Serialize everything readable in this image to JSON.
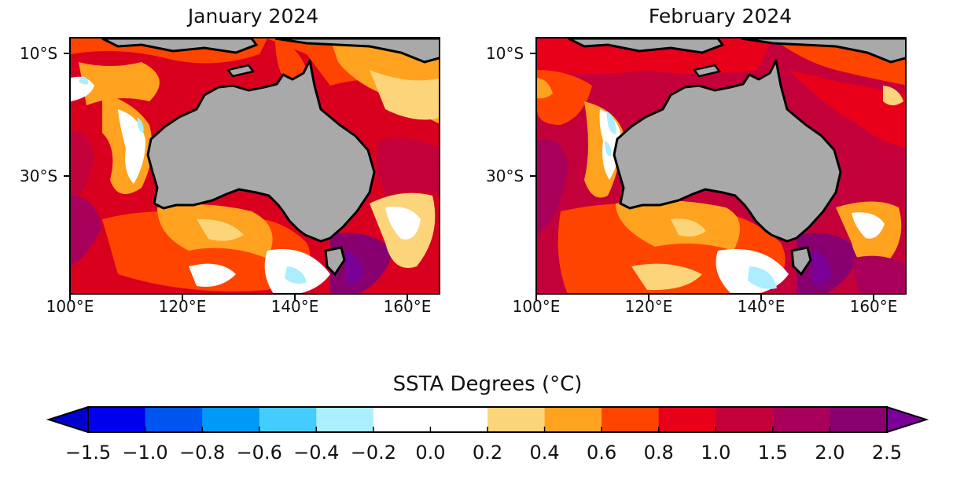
{
  "maps": [
    {
      "title": "January 2024"
    },
    {
      "title": "February 2024"
    }
  ],
  "axes": {
    "lat_labels": [
      "10°S",
      "30°S"
    ],
    "lon_labels": [
      "100°E",
      "120°E",
      "140°E",
      "160°E"
    ]
  },
  "colorbar": {
    "title": "SSTA Degrees (°C)",
    "tick_labels": [
      "−1.5",
      "−1.0",
      "−0.8",
      "−0.6",
      "−0.4",
      "−0.2",
      "0.0",
      "0.2",
      "0.4",
      "0.6",
      "0.8",
      "1.0",
      "1.5",
      "2.0",
      "2.5"
    ],
    "colors": [
      "#0000ee",
      "#0055f0",
      "#0099f5",
      "#44ccff",
      "#aaeeff",
      "#ffffff",
      "#ffffff",
      "#fcd47a",
      "#ffa21f",
      "#ff4400",
      "#e8001a",
      "#c4003a",
      "#a8005a",
      "#880070"
    ],
    "under_color": "#0000cc",
    "over_color": "#7a0098"
  },
  "colors": {
    "land": "#a9a9a9",
    "coast": "#000000"
  }
}
